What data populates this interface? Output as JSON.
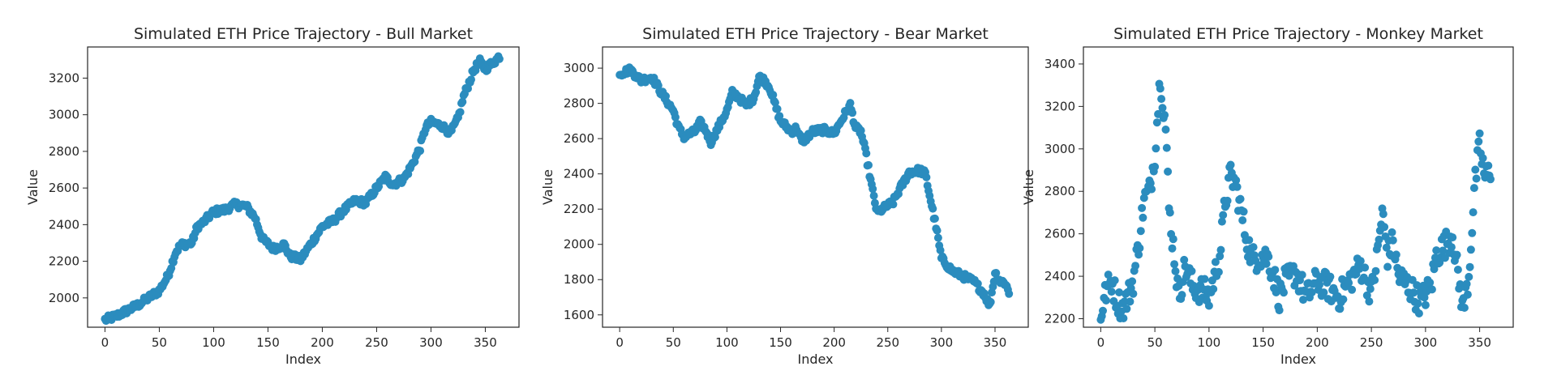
{
  "chart_data": [
    {
      "type": "scatter",
      "title": "Simulated ETH Price Trajectory - Bull Market",
      "xlabel": "Index",
      "ylabel": "Value",
      "xlim": [
        -16,
        381
      ],
      "ylim": [
        1840,
        3370
      ],
      "xticks": [
        0,
        50,
        100,
        150,
        200,
        250,
        300,
        350
      ],
      "yticks": [
        2000,
        2200,
        2400,
        2600,
        2800,
        3000,
        3200
      ],
      "grid": false,
      "legend": "none",
      "color": "#2b8cbe",
      "anchors": [
        [
          0,
          1880
        ],
        [
          10,
          1900
        ],
        [
          20,
          1930
        ],
        [
          30,
          1960
        ],
        [
          40,
          2000
        ],
        [
          50,
          2040
        ],
        [
          58,
          2120
        ],
        [
          65,
          2250
        ],
        [
          70,
          2290
        ],
        [
          80,
          2300
        ],
        [
          85,
          2390
        ],
        [
          90,
          2410
        ],
        [
          100,
          2470
        ],
        [
          110,
          2480
        ],
        [
          120,
          2510
        ],
        [
          130,
          2500
        ],
        [
          138,
          2440
        ],
        [
          145,
          2320
        ],
        [
          155,
          2270
        ],
        [
          165,
          2290
        ],
        [
          170,
          2230
        ],
        [
          180,
          2210
        ],
        [
          190,
          2300
        ],
        [
          200,
          2390
        ],
        [
          210,
          2420
        ],
        [
          220,
          2480
        ],
        [
          230,
          2530
        ],
        [
          240,
          2520
        ],
        [
          250,
          2600
        ],
        [
          258,
          2660
        ],
        [
          265,
          2620
        ],
        [
          275,
          2650
        ],
        [
          282,
          2720
        ],
        [
          290,
          2820
        ],
        [
          295,
          2930
        ],
        [
          300,
          2960
        ],
        [
          310,
          2940
        ],
        [
          318,
          2900
        ],
        [
          325,
          2980
        ],
        [
          330,
          3100
        ],
        [
          340,
          3250
        ],
        [
          345,
          3290
        ],
        [
          350,
          3250
        ],
        [
          360,
          3300
        ],
        [
          363,
          3320
        ]
      ]
    },
    {
      "type": "scatter",
      "title": "Simulated ETH Price Trajectory - Bear Market",
      "xlabel": "Index",
      "ylabel": "Value",
      "xlim": [
        -16,
        381
      ],
      "ylim": [
        1530,
        3120
      ],
      "xticks": [
        0,
        50,
        100,
        150,
        200,
        250,
        300,
        350
      ],
      "yticks": [
        1600,
        1800,
        2000,
        2200,
        2400,
        2600,
        2800,
        3000
      ],
      "grid": false,
      "legend": "none",
      "color": "#2b8cbe",
      "anchors": [
        [
          0,
          2970
        ],
        [
          10,
          2990
        ],
        [
          20,
          2930
        ],
        [
          30,
          2950
        ],
        [
          40,
          2850
        ],
        [
          50,
          2760
        ],
        [
          55,
          2660
        ],
        [
          60,
          2610
        ],
        [
          70,
          2640
        ],
        [
          75,
          2690
        ],
        [
          80,
          2650
        ],
        [
          85,
          2580
        ],
        [
          90,
          2640
        ],
        [
          100,
          2760
        ],
        [
          105,
          2860
        ],
        [
          110,
          2840
        ],
        [
          118,
          2790
        ],
        [
          125,
          2830
        ],
        [
          130,
          2950
        ],
        [
          135,
          2930
        ],
        [
          140,
          2890
        ],
        [
          145,
          2790
        ],
        [
          150,
          2700
        ],
        [
          160,
          2640
        ],
        [
          165,
          2660
        ],
        [
          170,
          2580
        ],
        [
          180,
          2640
        ],
        [
          190,
          2650
        ],
        [
          200,
          2630
        ],
        [
          210,
          2740
        ],
        [
          215,
          2790
        ],
        [
          220,
          2660
        ],
        [
          225,
          2640
        ],
        [
          230,
          2500
        ],
        [
          235,
          2330
        ],
        [
          240,
          2180
        ],
        [
          250,
          2220
        ],
        [
          255,
          2240
        ],
        [
          260,
          2300
        ],
        [
          270,
          2410
        ],
        [
          280,
          2420
        ],
        [
          285,
          2400
        ],
        [
          290,
          2250
        ],
        [
          295,
          2100
        ],
        [
          300,
          1920
        ],
        [
          310,
          1850
        ],
        [
          320,
          1820
        ],
        [
          330,
          1790
        ],
        [
          340,
          1720
        ],
        [
          345,
          1650
        ],
        [
          350,
          1840
        ],
        [
          355,
          1790
        ],
        [
          360,
          1780
        ],
        [
          363,
          1720
        ]
      ]
    },
    {
      "type": "scatter",
      "title": "Simulated ETH Price Trajectory - Monkey Market",
      "xlabel": "Index",
      "ylabel": "Value",
      "xlim": [
        -16,
        381
      ],
      "ylim": [
        2160,
        3480
      ],
      "xticks": [
        0,
        50,
        100,
        150,
        200,
        250,
        300,
        350
      ],
      "yticks": [
        2200,
        2400,
        2600,
        2800,
        3000,
        3200,
        3400
      ],
      "grid": false,
      "legend": "none",
      "color": "#2b8cbe",
      "anchors": [
        [
          0,
          2220
        ],
        [
          5,
          2330
        ],
        [
          10,
          2380
        ],
        [
          15,
          2290
        ],
        [
          20,
          2250
        ],
        [
          25,
          2300
        ],
        [
          30,
          2380
        ],
        [
          35,
          2550
        ],
        [
          40,
          2760
        ],
        [
          45,
          2800
        ],
        [
          50,
          2980
        ],
        [
          55,
          3350
        ],
        [
          60,
          3100
        ],
        [
          63,
          2720
        ],
        [
          68,
          2500
        ],
        [
          72,
          2300
        ],
        [
          78,
          2450
        ],
        [
          85,
          2350
        ],
        [
          95,
          2330
        ],
        [
          100,
          2300
        ],
        [
          105,
          2400
        ],
        [
          110,
          2500
        ],
        [
          115,
          2750
        ],
        [
          120,
          2880
        ],
        [
          125,
          2820
        ],
        [
          130,
          2700
        ],
        [
          135,
          2570
        ],
        [
          140,
          2480
        ],
        [
          150,
          2500
        ],
        [
          155,
          2480
        ],
        [
          160,
          2400
        ],
        [
          165,
          2300
        ],
        [
          170,
          2370
        ],
        [
          180,
          2420
        ],
        [
          190,
          2300
        ],
        [
          200,
          2380
        ],
        [
          210,
          2350
        ],
        [
          220,
          2300
        ],
        [
          230,
          2380
        ],
        [
          240,
          2450
        ],
        [
          250,
          2320
        ],
        [
          255,
          2480
        ],
        [
          260,
          2700
        ],
        [
          265,
          2500
        ],
        [
          270,
          2560
        ],
        [
          275,
          2400
        ],
        [
          285,
          2350
        ],
        [
          295,
          2280
        ],
        [
          305,
          2350
        ],
        [
          310,
          2500
        ],
        [
          320,
          2560
        ],
        [
          325,
          2600
        ],
        [
          330,
          2400
        ],
        [
          335,
          2250
        ],
        [
          340,
          2400
        ],
        [
          345,
          2800
        ],
        [
          350,
          3020
        ],
        [
          355,
          2860
        ],
        [
          360,
          2900
        ]
      ]
    }
  ]
}
